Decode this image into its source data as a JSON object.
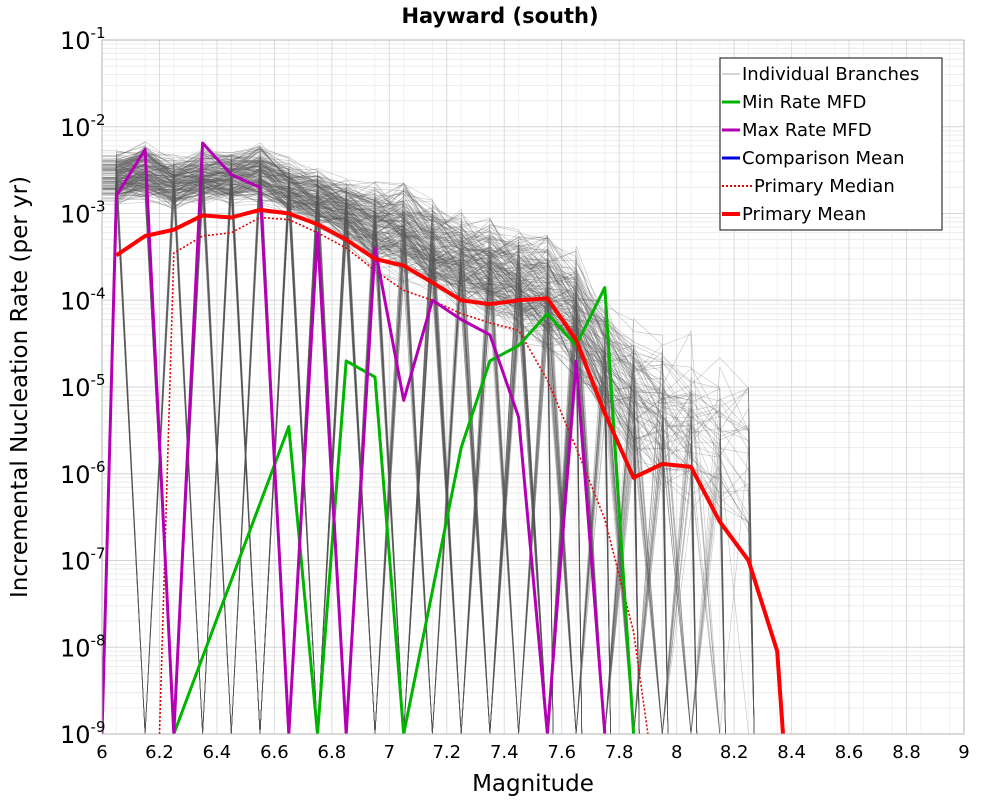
{
  "chart_data": {
    "type": "line",
    "title": "Hayward (south)",
    "xlabel": "Magnitude",
    "ylabel": "Incremental Nucleation Rate (per yr)",
    "xlim": [
      6,
      9
    ],
    "ylim": [
      1e-09,
      0.1
    ],
    "yscale": "log",
    "grid": true,
    "legend_position": "top-right",
    "x_ticks": [
      "6",
      "6.2",
      "6.4",
      "6.6",
      "6.8",
      "7",
      "7.2",
      "7.4",
      "7.6",
      "7.8",
      "8",
      "8.2",
      "8.4",
      "8.6",
      "8.8",
      "9"
    ],
    "y_ticks": [
      {
        "base": "10",
        "exp": "-9"
      },
      {
        "base": "10",
        "exp": "-8"
      },
      {
        "base": "10",
        "exp": "-7"
      },
      {
        "base": "10",
        "exp": "-6"
      },
      {
        "base": "10",
        "exp": "-5"
      },
      {
        "base": "10",
        "exp": "-4"
      },
      {
        "base": "10",
        "exp": "-3"
      },
      {
        "base": "10",
        "exp": "-2"
      },
      {
        "base": "10",
        "exp": "-1"
      }
    ],
    "series": [
      {
        "name": "Individual Branches",
        "color": "#555555",
        "style": "thin",
        "envelope_upper": [
          [
            6.05,
            0.0055
          ],
          [
            6.15,
            0.007
          ],
          [
            6.25,
            0.005
          ],
          [
            6.35,
            0.006
          ],
          [
            6.45,
            0.0055
          ],
          [
            6.55,
            0.007
          ],
          [
            6.65,
            0.0045
          ],
          [
            6.75,
            0.0035
          ],
          [
            6.85,
            0.0028
          ],
          [
            6.95,
            0.0025
          ],
          [
            7.05,
            0.0027
          ],
          [
            7.15,
            0.0016
          ],
          [
            7.25,
            0.0012
          ],
          [
            7.35,
            0.001
          ],
          [
            7.45,
            0.0008
          ],
          [
            7.55,
            0.0007
          ],
          [
            7.65,
            0.00045
          ],
          [
            7.75,
            0.00012
          ],
          [
            7.85,
            8e-05
          ],
          [
            7.95,
            5e-05
          ],
          [
            8.05,
            6e-05
          ],
          [
            8.15,
            3e-05
          ],
          [
            8.25,
            2.5e-05
          ],
          [
            8.35,
            3e-06
          ]
        ],
        "envelope_lower": [
          [
            6.05,
            0.0012
          ],
          [
            6.15,
            0.0012
          ],
          [
            6.25,
            0.001
          ],
          [
            6.35,
            0.0012
          ],
          [
            6.45,
            0.0012
          ],
          [
            6.55,
            0.0012
          ],
          [
            6.65,
            0.0008
          ],
          [
            6.75,
            0.0006
          ],
          [
            6.85,
            0.0004
          ],
          [
            6.95,
            0.0002
          ],
          [
            7.05,
            0.00015
          ],
          [
            7.15,
            0.0001
          ],
          [
            7.25,
            7e-05
          ],
          [
            7.35,
            5e-05
          ],
          [
            7.45,
            3e-05
          ],
          [
            7.55,
            2e-05
          ],
          [
            7.65,
            1e-05
          ],
          [
            7.75,
            3e-06
          ],
          [
            7.85,
            1e-06
          ],
          [
            7.95,
            5e-07
          ],
          [
            8.05,
            3e-07
          ],
          [
            8.15,
            2e-07
          ],
          [
            8.25,
            1e-07
          ],
          [
            8.35,
            5e-08
          ]
        ]
      },
      {
        "name": "Min Rate MFD",
        "color": "#00b400",
        "points": [
          [
            6.25,
            1e-09
          ],
          [
            6.65,
            3.5e-06
          ],
          [
            6.75,
            1e-09
          ],
          [
            6.85,
            2e-05
          ],
          [
            6.95,
            1.3e-05
          ],
          [
            7.05,
            1e-09
          ],
          [
            7.25,
            2e-06
          ],
          [
            7.35,
            2e-05
          ],
          [
            7.45,
            3e-05
          ],
          [
            7.55,
            7e-05
          ],
          [
            7.65,
            3e-05
          ],
          [
            7.75,
            0.00014
          ],
          [
            7.85,
            1e-09
          ]
        ]
      },
      {
        "name": "Max Rate MFD",
        "color": "#b400b4",
        "points": [
          [
            6.0,
            1e-09
          ],
          [
            6.05,
            0.0016
          ],
          [
            6.15,
            0.0055
          ],
          [
            6.25,
            1e-09
          ],
          [
            6.35,
            0.0065
          ],
          [
            6.45,
            0.0028
          ],
          [
            6.55,
            0.002
          ],
          [
            6.65,
            1e-09
          ],
          [
            6.75,
            0.0006
          ],
          [
            6.85,
            1e-09
          ],
          [
            6.95,
            0.0004
          ],
          [
            7.05,
            7e-06
          ],
          [
            7.15,
            0.0001
          ],
          [
            7.25,
            6e-05
          ],
          [
            7.35,
            4e-05
          ],
          [
            7.45,
            4.5e-06
          ],
          [
            7.55,
            1e-09
          ],
          [
            7.65,
            2e-05
          ],
          [
            7.75,
            1e-09
          ]
        ]
      },
      {
        "name": "Comparison Mean",
        "color": "#0000dc",
        "points": []
      },
      {
        "name": "Primary Median",
        "color": "#e60000",
        "style": "dotted",
        "points": [
          [
            6.2,
            1e-09
          ],
          [
            6.25,
            0.00035
          ],
          [
            6.35,
            0.00055
          ],
          [
            6.45,
            0.0006
          ],
          [
            6.55,
            0.0009
          ],
          [
            6.65,
            0.00085
          ],
          [
            6.75,
            0.0006
          ],
          [
            6.85,
            0.0004
          ],
          [
            6.95,
            0.00022
          ],
          [
            7.05,
            0.00013
          ],
          [
            7.15,
            0.0001
          ],
          [
            7.25,
            7e-05
          ],
          [
            7.35,
            5.5e-05
          ],
          [
            7.45,
            4.5e-05
          ],
          [
            7.55,
            1.2e-05
          ],
          [
            7.65,
            2e-06
          ],
          [
            7.75,
            3e-07
          ],
          [
            7.85,
            1.5e-08
          ],
          [
            7.9,
            1e-09
          ]
        ]
      },
      {
        "name": "Primary Mean",
        "color": "#ff0000",
        "style": "thick",
        "points": [
          [
            6.05,
            0.00033
          ],
          [
            6.15,
            0.00055
          ],
          [
            6.25,
            0.00065
          ],
          [
            6.35,
            0.00095
          ],
          [
            6.45,
            0.0009
          ],
          [
            6.55,
            0.0011
          ],
          [
            6.65,
            0.001
          ],
          [
            6.75,
            0.00075
          ],
          [
            6.85,
            0.0005
          ],
          [
            6.95,
            0.0003
          ],
          [
            7.05,
            0.00025
          ],
          [
            7.15,
            0.00016
          ],
          [
            7.25,
            0.0001
          ],
          [
            7.35,
            9e-05
          ],
          [
            7.45,
            0.0001
          ],
          [
            7.55,
            0.000105
          ],
          [
            7.65,
            3.5e-05
          ],
          [
            7.75,
            5e-06
          ],
          [
            7.85,
            9e-07
          ],
          [
            7.95,
            1.3e-06
          ],
          [
            8.05,
            1.2e-06
          ],
          [
            8.15,
            2.8e-07
          ],
          [
            8.25,
            1e-07
          ],
          [
            8.35,
            9e-09
          ],
          [
            8.37,
            1e-09
          ]
        ]
      }
    ]
  }
}
